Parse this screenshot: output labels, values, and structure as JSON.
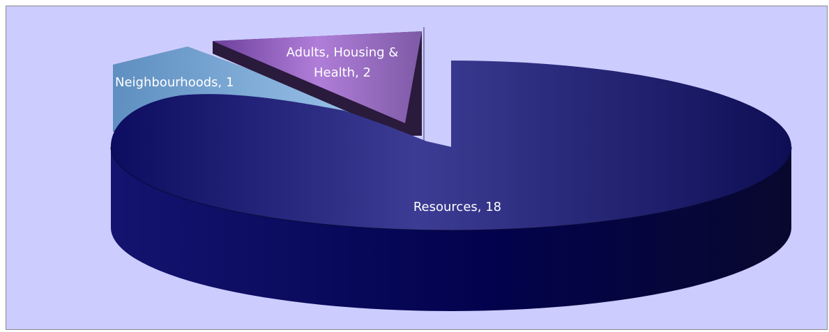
{
  "chart_data": {
    "type": "pie",
    "title": "",
    "slices": [
      {
        "label": "Resources",
        "value": 18,
        "color": "#1a1a7a",
        "data_label": "Resources, 18"
      },
      {
        "label": "Neighbourhoods",
        "value": 1,
        "color": "#6f9fcf",
        "data_label": "Neighbourhoods, 1"
      },
      {
        "label": "Adults, Housing & Health",
        "value": 2,
        "color": "#9b74c7",
        "data_label_line1": "Adults, Housing &",
        "data_label_line2": "Health, 2"
      }
    ],
    "style": "3d-exploded",
    "legend": "none"
  },
  "colors": {
    "background": "#ccccff",
    "border": "#8a8a8a"
  }
}
